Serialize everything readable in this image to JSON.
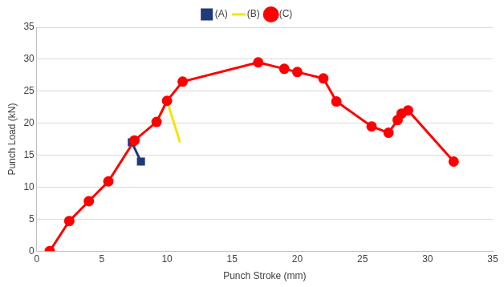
{
  "chart_data": {
    "type": "line",
    "x_label": "Punch Stroke (mm)",
    "y_label": "Punch Load (kN)",
    "xlim": [
      0,
      35
    ],
    "xticks": [
      0,
      5,
      10,
      15,
      20,
      25,
      30,
      35
    ],
    "ylim": [
      0,
      35
    ],
    "yticks": [
      0,
      5,
      10,
      15,
      20,
      25,
      30,
      35
    ],
    "grid": "y",
    "legend": "top",
    "series": [
      {
        "name": "(A)",
        "color": "#1f3a78",
        "marker": "square",
        "x": [
          7.3,
          8.0
        ],
        "values": [
          17.0,
          14.0
        ]
      },
      {
        "name": "(B)",
        "color": "#f2e600",
        "marker": "none",
        "x": [
          9.2,
          10.0,
          11.0
        ],
        "values": [
          20.2,
          23.5,
          17.0
        ]
      },
      {
        "name": "(C)",
        "color": "#ff0000",
        "marker": "circle",
        "x": [
          1.0,
          2.5,
          4.0,
          5.5,
          7.5,
          9.2,
          10.0,
          11.2,
          17.0,
          19.0,
          20.0,
          22.0,
          23.0,
          25.7,
          27.0,
          27.7,
          28.0,
          28.5,
          32.0
        ],
        "values": [
          0.0,
          4.7,
          7.8,
          10.9,
          17.3,
          20.2,
          23.5,
          26.5,
          29.5,
          28.5,
          28.0,
          27.0,
          23.4,
          19.5,
          18.5,
          20.5,
          21.5,
          22.0,
          14.0
        ]
      }
    ]
  }
}
